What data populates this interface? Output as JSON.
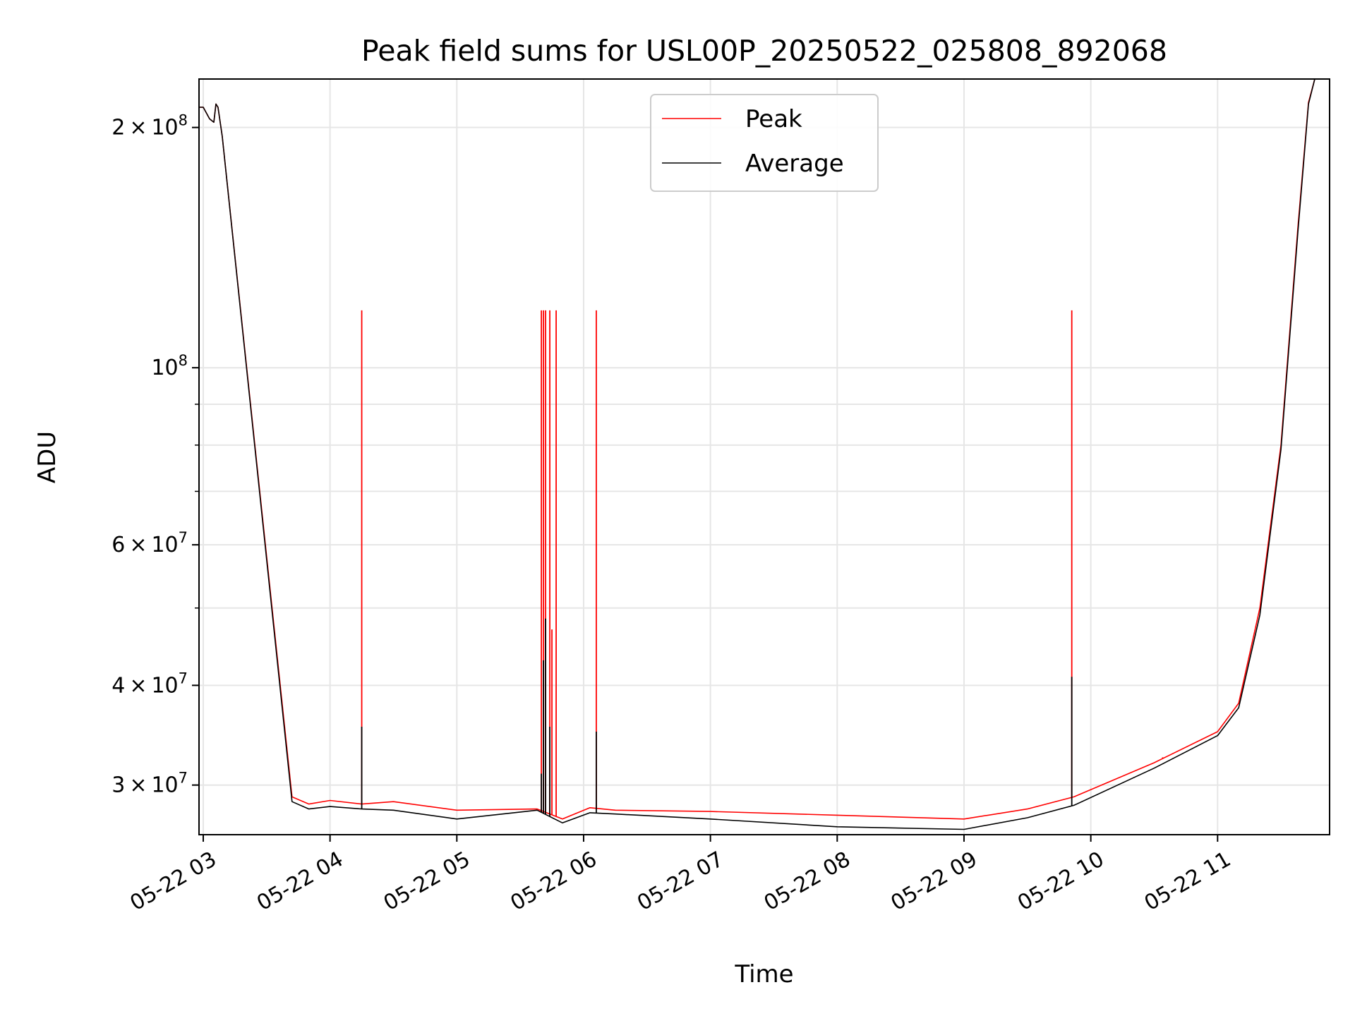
{
  "chart_data": {
    "type": "line",
    "title": "Peak field sums for USL00P_20250522_025808_892068",
    "xlabel": "Time",
    "ylabel": "ADU",
    "yscale": "log",
    "xlim": [
      "2025-05-22 02:58",
      "2025-05-22 11:53"
    ],
    "ylim": [
      26000000,
      230000000
    ],
    "grid": true,
    "legend_position": "top-center",
    "x_tick_labels": [
      "05-22 03",
      "05-22 04",
      "05-22 05",
      "05-22 06",
      "05-22 07",
      "05-22 08",
      "05-22 09",
      "05-22 10",
      "05-22 11"
    ],
    "y_tick_labels": [
      {
        "value": 30000000,
        "mantissa": "3",
        "exponent": "7"
      },
      {
        "value": 40000000,
        "mantissa": "4",
        "exponent": "7"
      },
      {
        "value": 60000000,
        "mantissa": "6",
        "exponent": "7"
      },
      {
        "value": 100000000,
        "mantissa": "",
        "exponent": "8"
      },
      {
        "value": 200000000,
        "mantissa": "2",
        "exponent": "8"
      }
    ],
    "series": [
      {
        "name": "Peak",
        "color": "#ff0000",
        "points": [
          [
            "2025-05-22 02:58",
            212000000
          ],
          [
            "2025-05-22 03:00",
            212000000
          ],
          [
            "2025-05-22 03:03",
            205000000
          ],
          [
            "2025-05-22 03:05",
            203000000
          ],
          [
            "2025-05-22 03:06",
            214000000
          ],
          [
            "2025-05-22 03:07",
            212000000
          ],
          [
            "2025-05-22 03:09",
            195000000
          ],
          [
            "2025-05-22 03:42",
            29000000
          ],
          [
            "2025-05-22 03:50",
            28400000
          ],
          [
            "2025-05-22 04:00",
            28700000
          ],
          [
            "2025-05-22 04:15",
            28400000
          ],
          [
            "2025-05-22 04:30",
            28600000
          ],
          [
            "2025-05-22 05:00",
            27900000
          ],
          [
            "2025-05-22 05:38",
            28000000
          ],
          [
            "2025-05-22 05:50",
            27200000
          ],
          [
            "2025-05-22 06:03",
            28100000
          ],
          [
            "2025-05-22 06:15",
            27900000
          ],
          [
            "2025-05-22 07:00",
            27800000
          ],
          [
            "2025-05-22 08:00",
            27500000
          ],
          [
            "2025-05-22 09:00",
            27200000
          ],
          [
            "2025-05-22 09:30",
            28000000
          ],
          [
            "2025-05-22 09:52",
            29000000
          ],
          [
            "2025-05-22 10:30",
            32000000
          ],
          [
            "2025-05-22 11:00",
            35000000
          ],
          [
            "2025-05-22 11:10",
            38000000
          ],
          [
            "2025-05-22 11:20",
            50000000
          ],
          [
            "2025-05-22 11:30",
            80000000
          ],
          [
            "2025-05-22 11:38",
            150000000
          ],
          [
            "2025-05-22 11:43",
            215000000
          ],
          [
            "2025-05-22 11:46",
            230000000
          ]
        ],
        "spikes": [
          [
            "2025-05-22 04:15",
            118000000
          ],
          [
            "2025-05-22 05:40",
            118000000
          ],
          [
            "2025-05-22 05:41",
            118000000
          ],
          [
            "2025-05-22 05:42",
            118000000
          ],
          [
            "2025-05-22 05:44",
            118000000
          ],
          [
            "2025-05-22 05:45",
            47000000
          ],
          [
            "2025-05-22 05:47",
            118000000
          ],
          [
            "2025-05-22 06:06",
            118000000
          ],
          [
            "2025-05-22 09:51",
            118000000
          ],
          [
            "2025-05-22 10:34",
            32500000
          ]
        ]
      },
      {
        "name": "Average",
        "color": "#000000",
        "points": [
          [
            "2025-05-22 02:58",
            212000000
          ],
          [
            "2025-05-22 03:00",
            212000000
          ],
          [
            "2025-05-22 03:03",
            205000000
          ],
          [
            "2025-05-22 03:05",
            203000000
          ],
          [
            "2025-05-22 03:06",
            214000000
          ],
          [
            "2025-05-22 03:07",
            212000000
          ],
          [
            "2025-05-22 03:09",
            195000000
          ],
          [
            "2025-05-22 03:42",
            28600000
          ],
          [
            "2025-05-22 03:50",
            28000000
          ],
          [
            "2025-05-22 04:00",
            28200000
          ],
          [
            "2025-05-22 04:15",
            28000000
          ],
          [
            "2025-05-22 04:30",
            27900000
          ],
          [
            "2025-05-22 05:00",
            27200000
          ],
          [
            "2025-05-22 05:38",
            27900000
          ],
          [
            "2025-05-22 05:50",
            26900000
          ],
          [
            "2025-05-22 06:03",
            27700000
          ],
          [
            "2025-05-22 06:15",
            27600000
          ],
          [
            "2025-05-22 07:00",
            27200000
          ],
          [
            "2025-05-22 08:00",
            26600000
          ],
          [
            "2025-05-22 09:00",
            26400000
          ],
          [
            "2025-05-22 09:30",
            27300000
          ],
          [
            "2025-05-22 09:52",
            28300000
          ],
          [
            "2025-05-22 10:30",
            31500000
          ],
          [
            "2025-05-22 11:00",
            34600000
          ],
          [
            "2025-05-22 11:10",
            37500000
          ],
          [
            "2025-05-22 11:20",
            49000000
          ],
          [
            "2025-05-22 11:30",
            79000000
          ],
          [
            "2025-05-22 11:38",
            148000000
          ],
          [
            "2025-05-22 11:43",
            214000000
          ],
          [
            "2025-05-22 11:46",
            230000000
          ]
        ],
        "spikes": [
          [
            "2025-05-22 04:15",
            35500000
          ],
          [
            "2025-05-22 05:40",
            31000000
          ],
          [
            "2025-05-22 05:41",
            43000000
          ],
          [
            "2025-05-22 05:42",
            48500000
          ],
          [
            "2025-05-22 05:44",
            35500000
          ],
          [
            "2025-05-22 06:06",
            35000000
          ],
          [
            "2025-05-22 09:51",
            41000000
          ]
        ]
      }
    ]
  }
}
